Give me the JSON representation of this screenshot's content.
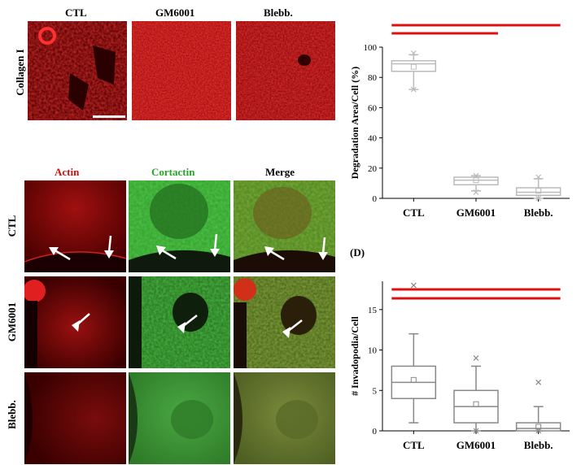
{
  "figure": {
    "micrograph": {
      "top_columns": [
        "CTL",
        "GM6001",
        "Blebb."
      ],
      "top_row_label": "Collagen I",
      "bottom_columns": [
        "Actin",
        "Cortactin",
        "Merge"
      ],
      "bottom_rows": [
        "CTL",
        "GM6001",
        "Blebb."
      ]
    },
    "panel_label_d": "(D)"
  },
  "chart_data": [
    {
      "type": "box",
      "ylabel": "Degradation Area/Cell (%)",
      "xlabel": "",
      "ylim": [
        0,
        100
      ],
      "yticks": [
        0,
        20,
        40,
        60,
        80,
        100
      ],
      "categories": [
        "CTL",
        "GM6001",
        "Blebb."
      ],
      "boxes": [
        {
          "min": 72,
          "q1": 84,
          "median": 89,
          "q3": 91,
          "max": 95,
          "mean": 87,
          "outliers": [
            96,
            72
          ]
        },
        {
          "min": 5,
          "q1": 9,
          "median": 12,
          "q3": 14,
          "max": 15,
          "mean": 12,
          "outliers": [
            15,
            4
          ]
        },
        {
          "min": 0,
          "q1": 2,
          "median": 4,
          "q3": 7,
          "max": 13,
          "mean": 5,
          "outliers": [
            14,
            0
          ]
        }
      ],
      "colors": {
        "box": "#bbbbbb",
        "significance": "#dd1111"
      }
    },
    {
      "type": "box",
      "ylabel": "# Invadopodia/Cell",
      "xlabel": "",
      "ylim": [
        0,
        18.5
      ],
      "yticks": [
        0,
        5,
        10,
        15
      ],
      "categories": [
        "CTL",
        "GM6001",
        "Blebb."
      ],
      "boxes": [
        {
          "min": 1,
          "q1": 4,
          "median": 6,
          "q3": 8,
          "max": 12,
          "mean": 6.3,
          "outliers": [
            18
          ]
        },
        {
          "min": 0,
          "q1": 1,
          "median": 3,
          "q3": 5,
          "max": 8,
          "mean": 3.3,
          "outliers": [
            9,
            0
          ]
        },
        {
          "min": 0,
          "q1": 0,
          "median": 0.3,
          "q3": 1,
          "max": 3,
          "mean": 0.5,
          "outliers": [
            6,
            0
          ]
        }
      ],
      "colors": {
        "box": "#888888",
        "significance": "#dd1111"
      }
    }
  ]
}
